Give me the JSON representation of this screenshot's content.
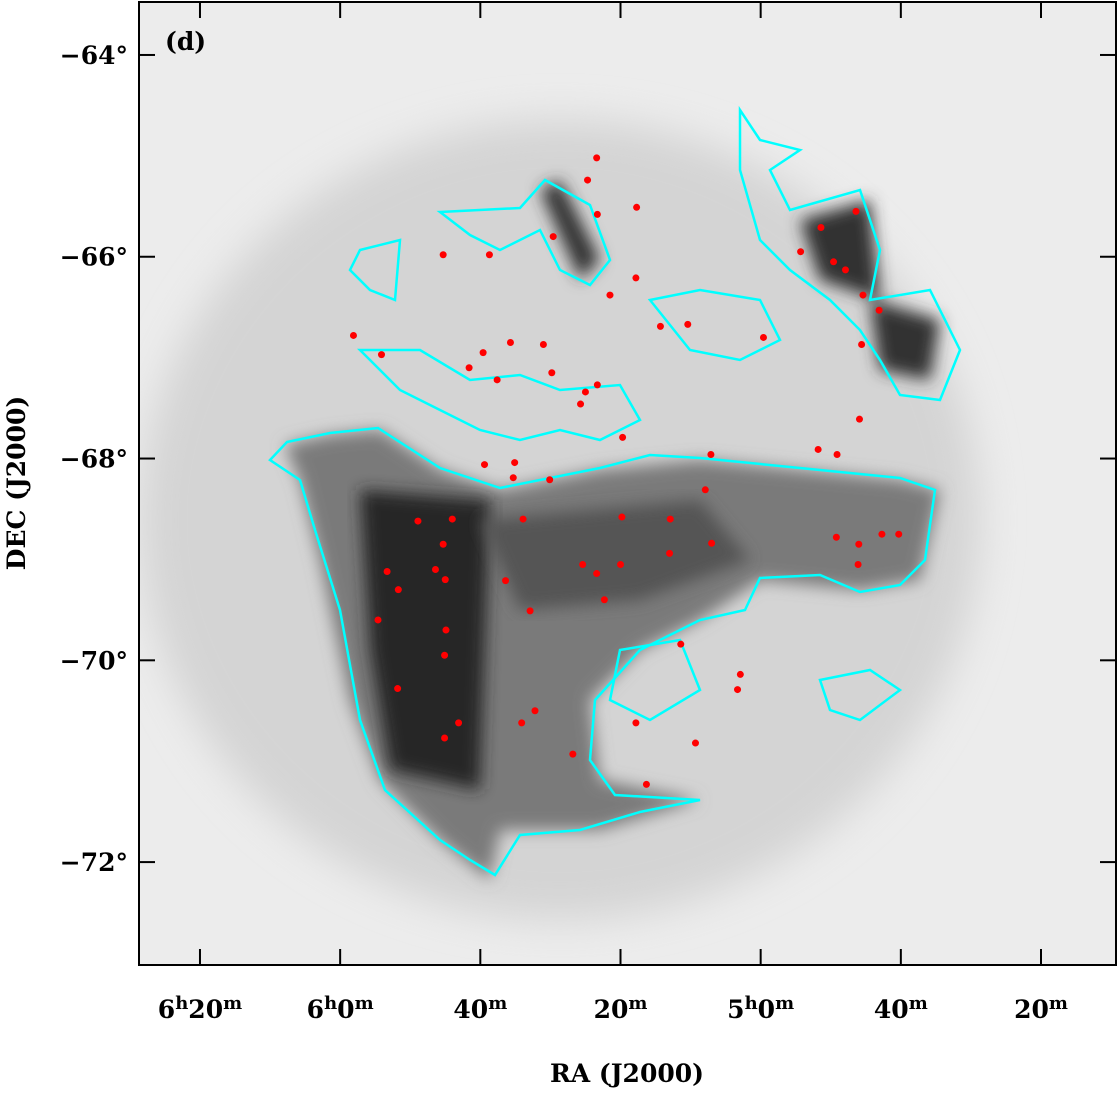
{
  "chart_data": {
    "type": "scatter",
    "panel_label": "(d)",
    "xlabel": "RA (J2000)",
    "ylabel": "DEC (J2000)",
    "xlim": [
      388.7,
      249.3
    ],
    "ylim": [
      -73.02,
      -63.475
    ],
    "xticks": [
      {
        "value": 380,
        "label": "6h20m"
      },
      {
        "value": 360,
        "label": "6h0m"
      },
      {
        "value": 340,
        "label": "40m"
      },
      {
        "value": 320,
        "label": "20m"
      },
      {
        "value": 300,
        "label": "5h0m"
      },
      {
        "value": 280,
        "label": "40m"
      },
      {
        "value": 260,
        "label": "20m"
      }
    ],
    "yticks": [
      {
        "value": -64,
        "label": "−64°"
      },
      {
        "value": -66,
        "label": "−66°"
      },
      {
        "value": -68,
        "label": "−68°"
      },
      {
        "value": -70,
        "label": "−70°"
      },
      {
        "value": -72,
        "label": "−72°"
      }
    ],
    "series": [
      {
        "color": "#ff0000",
        "x": [
          323.4,
          324.7,
          323.3,
          317.7,
          329.6,
          345.3,
          338.7,
          317.8,
          321.5,
          291.4,
          289.6,
          287.9,
          294.3,
          286.4,
          285.4,
          283.1,
          285.6,
          299.6,
          310.4,
          314.3,
          331.0,
          335.7,
          341.6,
          339.6,
          325.0,
          323.3,
          325.7,
          329.8,
          337.6,
          358.1,
          354.1,
          319.7,
          335.1,
          339.4,
          335.3,
          330.1,
          307.1,
          307.9,
          291.8,
          289.1,
          285.9,
          289.2,
          286.0,
          282.7,
          280.3,
          286.1,
          348.9,
          344.0,
          345.3,
          346.4,
          345.0,
          353.3,
          351.7,
          354.6,
          344.9,
          345.1,
          351.8,
          343.1,
          345.1,
          333.9,
          336.4,
          325.4,
          323.4,
          322.3,
          319.8,
          320.0,
          312.9,
          313.0,
          307.0,
          332.9,
          311.4,
          334.1,
          332.2,
          317.8,
          309.3,
          302.9,
          303.3,
          316.3,
          326.8
        ],
        "values": [
          -65.02,
          -65.24,
          -65.58,
          -65.51,
          -65.8,
          -65.98,
          -65.98,
          -66.21,
          -66.38,
          -65.71,
          -66.05,
          -66.13,
          -65.95,
          -65.55,
          -66.38,
          -66.53,
          -66.87,
          -66.8,
          -66.67,
          -66.69,
          -66.87,
          -66.85,
          -67.1,
          -66.95,
          -67.34,
          -67.27,
          -67.46,
          -67.15,
          -67.22,
          -66.78,
          -66.97,
          -67.79,
          -68.04,
          -68.06,
          -68.19,
          -68.21,
          -67.96,
          -68.31,
          -67.91,
          -67.96,
          -67.61,
          -68.78,
          -68.85,
          -68.75,
          -68.75,
          -69.05,
          -68.62,
          -68.6,
          -68.85,
          -69.1,
          -69.2,
          -69.12,
          -69.3,
          -69.6,
          -69.7,
          -69.95,
          -70.28,
          -70.62,
          -70.77,
          -68.6,
          -69.21,
          -69.05,
          -69.14,
          -69.4,
          -68.58,
          -69.05,
          -68.6,
          -68.94,
          -68.84,
          -69.51,
          -69.84,
          -70.62,
          -70.5,
          -70.62,
          -70.82,
          -70.14,
          -70.29,
          -71.23,
          -70.93
        ]
      }
    ]
  }
}
